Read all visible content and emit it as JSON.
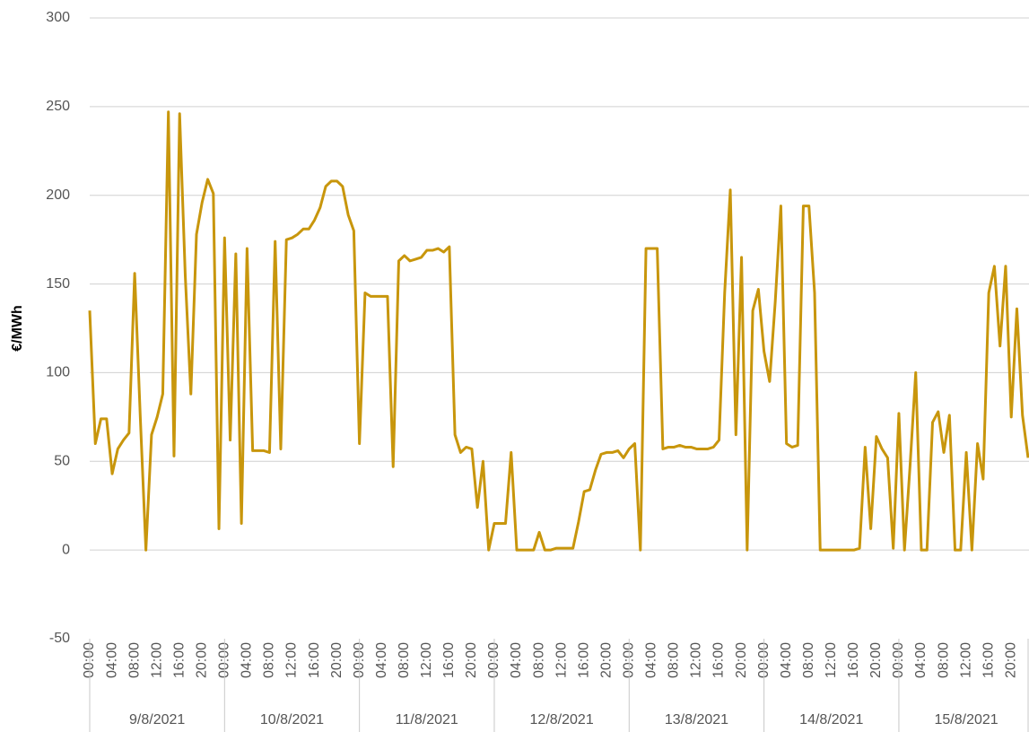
{
  "chart_data": {
    "type": "line",
    "y_label": "€/MWh",
    "days": [
      "9/8/2021",
      "10/8/2021",
      "11/8/2021",
      "12/8/2021",
      "13/8/2021",
      "14/8/2021",
      "15/8/2021"
    ],
    "categories": [
      "00:00",
      null,
      null,
      null,
      "04:00",
      null,
      null,
      null,
      "08:00",
      null,
      null,
      null,
      "12:00",
      null,
      null,
      null,
      "16:00",
      null,
      null,
      null,
      "20:00",
      null,
      null,
      null,
      "00:00",
      null,
      null,
      null,
      "04:00",
      null,
      null,
      null,
      "08:00",
      null,
      null,
      null,
      "12:00",
      null,
      null,
      null,
      "16:00",
      null,
      null,
      null,
      "20:00",
      null,
      null,
      null,
      "00:00",
      null,
      null,
      null,
      "04:00",
      null,
      null,
      null,
      "08:00",
      null,
      null,
      null,
      "12:00",
      null,
      null,
      null,
      "16:00",
      null,
      null,
      null,
      "20:00",
      null,
      null,
      null,
      "00:00",
      null,
      null,
      null,
      "04:00",
      null,
      null,
      null,
      "08:00",
      null,
      null,
      null,
      "12:00",
      null,
      null,
      null,
      "16:00",
      null,
      null,
      null,
      "20:00",
      null,
      null,
      null,
      "00:00",
      null,
      null,
      null,
      "04:00",
      null,
      null,
      null,
      "08:00",
      null,
      null,
      null,
      "12:00",
      null,
      null,
      null,
      "16:00",
      null,
      null,
      null,
      "20:00",
      null,
      null,
      null,
      "00:00",
      null,
      null,
      null,
      "04:00",
      null,
      null,
      null,
      "08:00",
      null,
      null,
      null,
      "12:00",
      null,
      null,
      null,
      "16:00",
      null,
      null,
      null,
      "20:00",
      null,
      null,
      null,
      "00:00",
      null,
      null,
      null,
      "04:00",
      null,
      null,
      null,
      "08:00",
      null,
      null,
      null,
      "12:00",
      null,
      null,
      null,
      "16:00",
      null,
      null,
      null,
      "20:00",
      null,
      null,
      null
    ],
    "color": "#c8960c",
    "values": [
      135,
      60,
      74,
      74,
      43,
      57,
      62,
      66,
      156,
      75,
      0,
      65,
      75,
      88,
      247,
      53,
      246,
      155,
      88,
      178,
      196,
      209,
      201,
      12,
      176,
      62,
      167,
      15,
      170,
      56,
      56,
      56,
      55,
      174,
      57,
      175,
      176,
      178,
      181,
      181,
      186,
      193,
      205,
      208,
      208,
      205,
      189,
      180,
      60,
      145,
      143,
      143,
      143,
      143,
      47,
      163,
      166,
      163,
      164,
      165,
      169,
      169,
      170,
      168,
      171,
      65,
      55,
      58,
      57,
      24,
      50,
      0,
      15,
      15,
      15,
      55,
      0,
      0,
      0,
      0,
      10,
      0,
      0,
      1,
      1,
      1,
      1,
      16,
      33,
      34,
      45,
      54,
      55,
      55,
      56,
      52,
      57,
      60,
      0,
      170,
      170,
      170,
      57,
      58,
      58,
      59,
      58,
      58,
      57,
      57,
      57,
      58,
      62,
      145,
      203,
      65,
      165,
      0,
      135,
      147,
      112,
      95,
      140,
      194,
      60,
      58,
      59,
      194,
      194,
      145,
      0,
      0,
      0,
      0,
      0,
      0,
      0,
      1,
      58,
      12,
      64,
      57,
      52,
      1,
      77,
      0,
      48,
      100,
      0,
      0,
      72,
      78,
      55,
      76,
      0,
      0,
      55,
      0,
      60,
      40,
      145,
      160,
      115,
      160,
      75,
      136,
      76,
      52
    ],
    "ylim": [
      -50,
      300
    ],
    "yticks": [
      -50,
      0,
      50,
      100,
      150,
      200,
      250,
      300
    ],
    "grid": true
  }
}
